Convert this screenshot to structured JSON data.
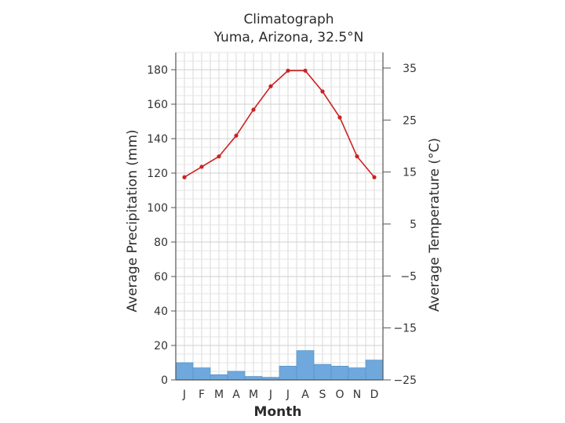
{
  "chart_data": {
    "type": "bar+line",
    "title": "Climatograph",
    "subtitle": "Yuma, Arizona, 32.5°N",
    "xlabel": "Month",
    "categories": [
      "J",
      "F",
      "M",
      "A",
      "M",
      "J",
      "J",
      "A",
      "S",
      "O",
      "N",
      "D"
    ],
    "precipitation": {
      "name": "Average Precipitation (mm)",
      "axis": "left",
      "ylabel": "Average Precipitation (mm)",
      "ylim": [
        0,
        190
      ],
      "ticks": [
        0,
        20,
        40,
        60,
        80,
        100,
        120,
        140,
        160,
        180
      ],
      "tick_labels": [
        "0",
        "20",
        "40",
        "60",
        "80",
        "100",
        "120",
        "140",
        "160",
        "180"
      ],
      "values": [
        10,
        7,
        3,
        5,
        2,
        1.5,
        8,
        17,
        9,
        8,
        7,
        11.5
      ],
      "color": "#6fa8dc"
    },
    "temperature": {
      "name": "Average Temperature (°C)",
      "axis": "right",
      "ylabel": "Average Temperature (°C)",
      "ylim": [
        -25,
        38
      ],
      "ticks": [
        -25,
        -15,
        -5,
        5,
        15,
        25,
        35
      ],
      "tick_labels": [
        "−25",
        "−15",
        "−5",
        "5",
        "15",
        "25",
        "35"
      ],
      "values": [
        14,
        16,
        18,
        22,
        27,
        31.5,
        34.5,
        34.5,
        30.5,
        25.5,
        18,
        14
      ],
      "color": "#cc2222"
    },
    "grid": true
  }
}
